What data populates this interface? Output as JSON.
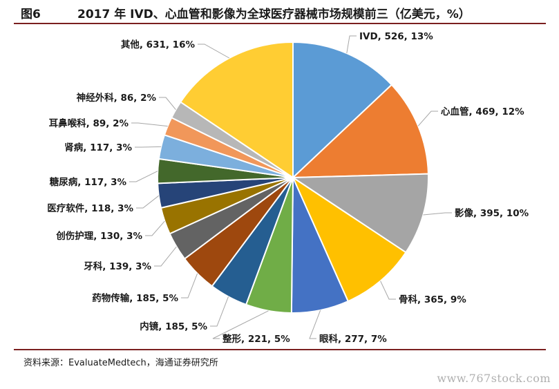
{
  "figure": {
    "number": "图6",
    "title": "2017 年 IVD、心血管和影像为全球医疗器械市场规模前三（亿美元，%）"
  },
  "source": "资料来源：EvaluateMedtech，海通证券研究所",
  "watermark": "www.767stock.com",
  "chart_data": {
    "type": "pie",
    "title": "2017 年 IVD、心血管和影像为全球医疗器械市场规模前三（亿美元，%）",
    "unit": "亿美元，%",
    "slices": [
      {
        "label": "IVD",
        "value": 526,
        "percent": 13,
        "color": "#5b9bd5",
        "text": "IVD, 526, 13%"
      },
      {
        "label": "心血管",
        "value": 469,
        "percent": 12,
        "color": "#ed7d31",
        "text": "心血管, 469, 12%"
      },
      {
        "label": "影像",
        "value": 395,
        "percent": 10,
        "color": "#a5a5a5",
        "text": "影像, 395, 10%"
      },
      {
        "label": "骨科",
        "value": 365,
        "percent": 9,
        "color": "#ffc000",
        "text": "骨科, 365, 9%"
      },
      {
        "label": "眼科",
        "value": 277,
        "percent": 7,
        "color": "#4472c4",
        "text": "眼科, 277, 7%"
      },
      {
        "label": "整形",
        "value": 221,
        "percent": 5,
        "color": "#70ad47",
        "text": "整形, 221, 5%"
      },
      {
        "label": "内镜",
        "value": 185,
        "percent": 5,
        "color": "#255e91",
        "text": "内镜, 185, 5%"
      },
      {
        "label": "药物传输",
        "value": 185,
        "percent": 5,
        "color": "#9e480e",
        "text": "药物传输, 185, 5%"
      },
      {
        "label": "牙科",
        "value": 139,
        "percent": 3,
        "color": "#636363",
        "text": "牙科, 139, 3%"
      },
      {
        "label": "创伤护理",
        "value": 130,
        "percent": 3,
        "color": "#997300",
        "text": "创伤护理, 130, 3%"
      },
      {
        "label": "医疗软件",
        "value": 118,
        "percent": 3,
        "color": "#264478",
        "text": "医疗软件, 118, 3%"
      },
      {
        "label": "糖尿病",
        "value": 117,
        "percent": 3,
        "color": "#43682b",
        "text": "糖尿病, 117, 3%"
      },
      {
        "label": "肾病",
        "value": 117,
        "percent": 3,
        "color": "#7cafdd",
        "text": "肾病, 117, 3%"
      },
      {
        "label": "耳鼻喉科",
        "value": 89,
        "percent": 2,
        "color": "#f1975a",
        "text": "耳鼻喉科, 89, 2%"
      },
      {
        "label": "神经外科",
        "value": 86,
        "percent": 2,
        "color": "#b7b7b7",
        "text": "神经外科, 86, 2%"
      },
      {
        "label": "其他",
        "value": 631,
        "percent": 16,
        "color": "#ffcd33",
        "text": "其他, 631, 16%"
      }
    ]
  }
}
